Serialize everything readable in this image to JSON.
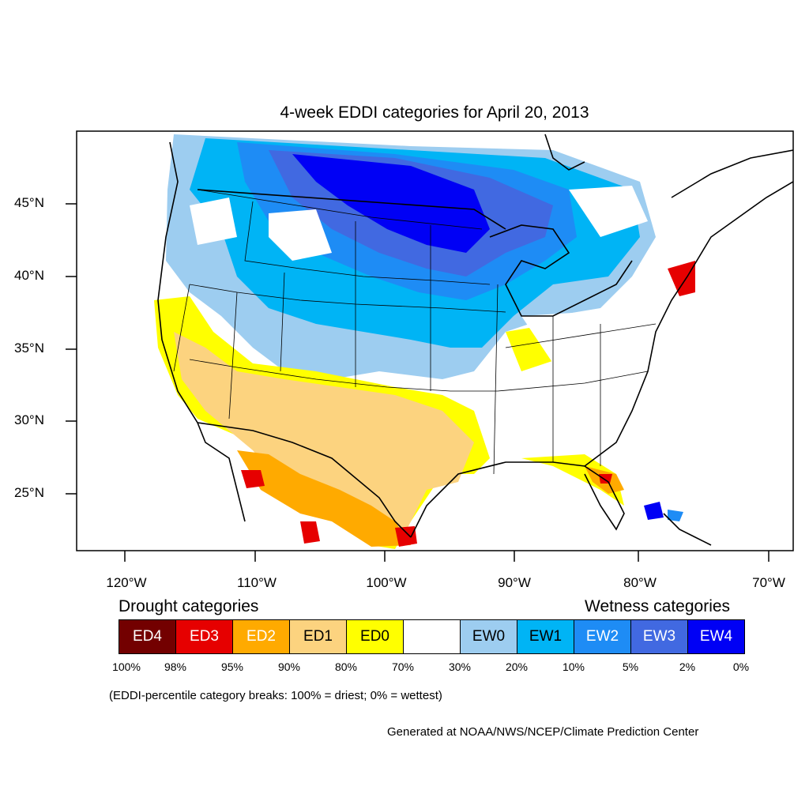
{
  "title": "4-week EDDI categories for April 20, 2013",
  "lat_labels": [
    "45°N",
    "40°N",
    "35°N",
    "30°N",
    "25°N"
  ],
  "lon_labels": [
    "120°W",
    "110°W",
    "100°W",
    "90°W",
    "80°W",
    "70°W"
  ],
  "legend": {
    "drought_heading": "Drought categories",
    "wetness_heading": "Wetness categories",
    "categories": [
      {
        "label": "ED4",
        "color": "#730000",
        "text_color": "#ffffff"
      },
      {
        "label": "ED3",
        "color": "#e60000",
        "text_color": "#ffffff"
      },
      {
        "label": "ED2",
        "color": "#ffaa00",
        "text_color": "#ffffff"
      },
      {
        "label": "ED1",
        "color": "#fcd37f",
        "text_color": "#000000"
      },
      {
        "label": "ED0",
        "color": "#ffff00",
        "text_color": "#000000"
      },
      {
        "label": "",
        "color": "#ffffff",
        "text_color": "#000000"
      },
      {
        "label": "EW0",
        "color": "#9dcdf0",
        "text_color": "#000000"
      },
      {
        "label": "EW1",
        "color": "#00b4f5",
        "text_color": "#000000"
      },
      {
        "label": "EW2",
        "color": "#1e8cf5",
        "text_color": "#ffffff"
      },
      {
        "label": "EW3",
        "color": "#4169e1",
        "text_color": "#ffffff"
      },
      {
        "label": "EW4",
        "color": "#0000f5",
        "text_color": "#ffffff"
      }
    ],
    "percentiles": [
      "100%",
      "98%",
      "95%",
      "90%",
      "80%",
      "70%",
      "30%",
      "20%",
      "10%",
      "5%",
      "2%",
      "0%"
    ]
  },
  "note": "(EDDI-percentile category breaks: 100% = driest; 0% = wettest)",
  "credit": "Generated at NOAA/NWS/NCEP/Climate Prediction Center"
}
